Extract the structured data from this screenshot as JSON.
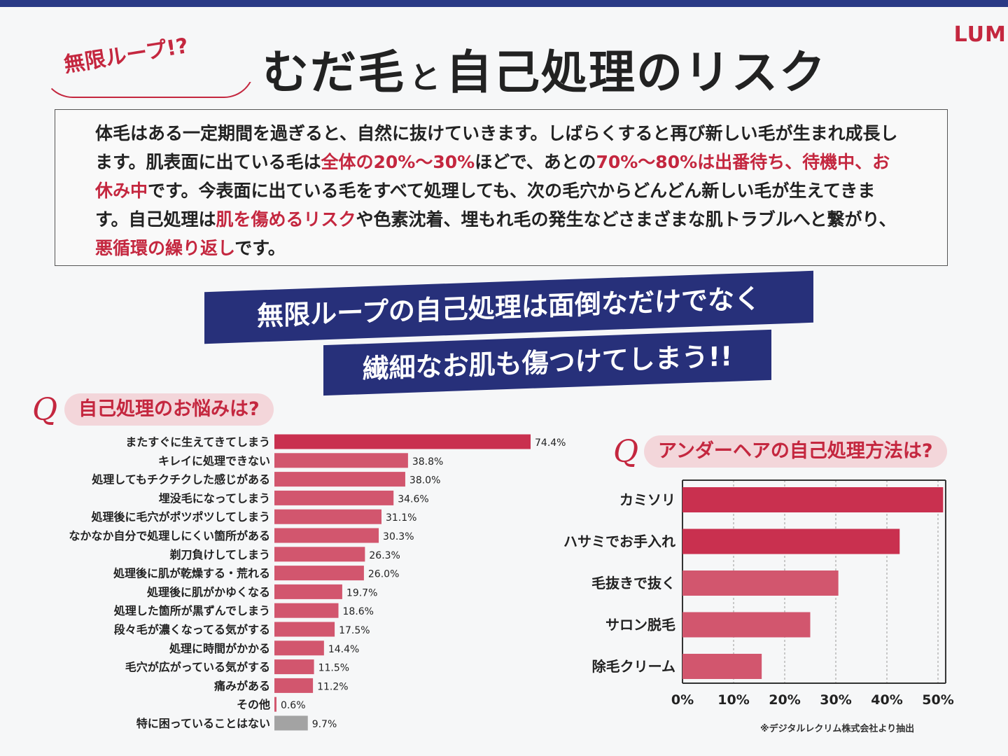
{
  "brand": "LUMI",
  "tag": "無限ループ!?",
  "title_parts": [
    "むだ毛",
    "と",
    "自己処理のリスク"
  ],
  "paragraph": [
    {
      "t": "体毛はある一定期間を過ぎると、自然に抜けていきます。しばらくすると再び新しい毛が生まれ成長します。肌表面に出ている毛は",
      "hl": false
    },
    {
      "t": "全体の20%〜30%",
      "hl": true
    },
    {
      "t": "ほどで、あとの",
      "hl": false
    },
    {
      "t": "70%〜80%は出番待ち、待機中、お休み中",
      "hl": true
    },
    {
      "t": "です。今表面に出ている毛をすべて処理しても、次の毛穴からどんどん新しい毛が生えてきます。自己処理は",
      "hl": false
    },
    {
      "t": "肌を傷めるリスク",
      "hl": true
    },
    {
      "t": "や色素沈着、埋もれ毛の発生などさまざまな肌トラブルへと繋がり、",
      "hl": false
    },
    {
      "t": "悪循環の繰り返し",
      "hl": true
    },
    {
      "t": "です。",
      "hl": false
    }
  ],
  "banner": [
    "無限ループの自己処理は面倒なだけでなく",
    "繊細なお肌も傷つけてしまう!!"
  ],
  "q_mark": "Q",
  "note": "※デジタルレクリム株式会社より抽出",
  "colors": {
    "bar_primary": "#c9304f",
    "bar_secondary": "#d2566e",
    "bar_gray": "#a3a3a3",
    "accent": "#c4273f",
    "banner": "#27307a"
  },
  "chart_data": [
    {
      "type": "bar",
      "orientation": "horizontal",
      "title": "自己処理のお悩みは?",
      "categories": [
        "またすぐに生えてきてしまう",
        "キレイに処理できない",
        "処理してもチクチクした感じがある",
        "埋没毛になってしまう",
        "処理後に毛穴がポツポツしてしまう",
        "なかなか自分で処理しにくい箇所がある",
        "剃刀負けしてしまう",
        "処理後に肌が乾燥する・荒れる",
        "処理後に肌がかゆくなる",
        "処理した箇所が黒ずんでしまう",
        "段々毛が濃くなってる気がする",
        "処理に時間がかかる",
        "毛穴が広がっている気がする",
        "痛みがある",
        "その他",
        "特に困っていることはない"
      ],
      "values": [
        74.4,
        38.8,
        38.0,
        34.6,
        31.1,
        30.3,
        26.3,
        26.0,
        19.7,
        18.6,
        17.5,
        14.4,
        11.5,
        11.2,
        0.6,
        9.7
      ],
      "value_labels": [
        "74.4%",
        "38.8%",
        "38.0%",
        "34.6%",
        "31.1%",
        "30.3%",
        "26.3%",
        "26.0%",
        "19.7%",
        "18.6%",
        "17.5%",
        "14.4%",
        "11.5%",
        "11.2%",
        "0.6%",
        "9.7%"
      ],
      "xlim": [
        0,
        80
      ]
    },
    {
      "type": "bar",
      "orientation": "horizontal",
      "title": "アンダーヘアの自己処理方法は?",
      "categories": [
        "カミソリ",
        "ハサミでお手入れ",
        "毛抜きで抜く",
        "サロン脱毛",
        "除毛クリーム"
      ],
      "values": [
        51,
        42.5,
        30.5,
        25,
        15.5
      ],
      "xticks": [
        "0%",
        "10%",
        "20%",
        "30%",
        "40%",
        "50%"
      ],
      "xlim": [
        0,
        51.5
      ],
      "grid": true
    }
  ]
}
